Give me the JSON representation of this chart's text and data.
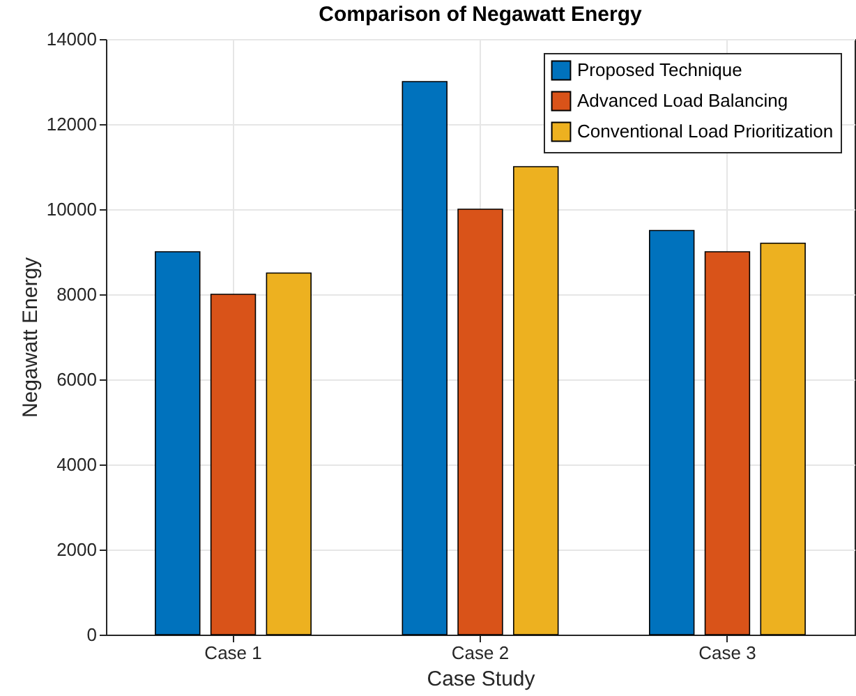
{
  "chart_data": {
    "type": "bar",
    "title": "Comparison of Negawatt Energy",
    "xlabel": "Case Study",
    "ylabel": "Negawatt Energy",
    "categories": [
      "Case 1",
      "Case 2",
      "Case 3"
    ],
    "series": [
      {
        "name": "Proposed Technique",
        "color": "#0072bd",
        "values": [
          9000,
          13000,
          9500
        ]
      },
      {
        "name": "Advanced Load Balancing",
        "color": "#d95319",
        "values": [
          8000,
          10000,
          9000
        ]
      },
      {
        "name": "Conventional Load Prioritization",
        "color": "#edb120",
        "values": [
          8500,
          11000,
          9200
        ]
      }
    ],
    "ylim": [
      0,
      14000
    ],
    "yticks": [
      0,
      2000,
      4000,
      6000,
      8000,
      10000,
      12000,
      14000
    ],
    "grid": true,
    "legend": "top right"
  }
}
